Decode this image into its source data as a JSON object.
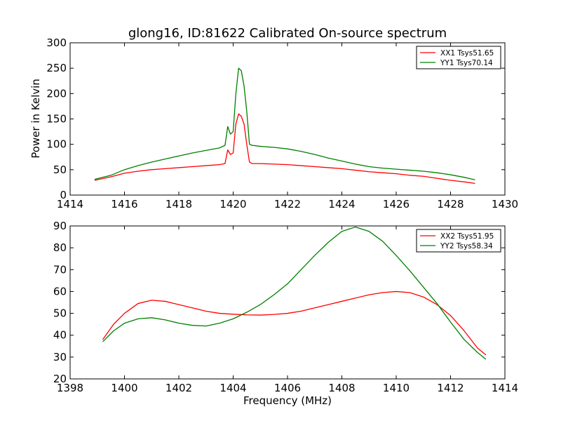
{
  "figure": {
    "title": "glong16, ID:81622 Calibrated On-source spectrum",
    "xlabel": "Frequency (MHz)"
  },
  "chart_data": [
    {
      "type": "line",
      "title": "glong16, ID:81622 Calibrated On-source spectrum",
      "xlabel": "",
      "ylabel": "Power in Kelvin",
      "xlim": [
        1414,
        1430
      ],
      "ylim": [
        0,
        300
      ],
      "xticks": [
        1414,
        1416,
        1418,
        1420,
        1422,
        1424,
        1426,
        1428,
        1430
      ],
      "yticks": [
        0,
        50,
        100,
        150,
        200,
        250,
        300
      ],
      "grid": false,
      "legend_position": "top-right",
      "series": [
        {
          "name": "XX1 Tsys51.65",
          "color": "#ff0000",
          "x": [
            1414.9,
            1415.5,
            1416.0,
            1416.5,
            1417.0,
            1417.5,
            1418.0,
            1418.5,
            1419.0,
            1419.5,
            1419.7,
            1419.8,
            1419.9,
            1420.0,
            1420.1,
            1420.2,
            1420.3,
            1420.4,
            1420.5,
            1420.6,
            1420.7,
            1421.0,
            1421.5,
            1422.0,
            1422.5,
            1423.0,
            1423.5,
            1424.0,
            1424.5,
            1425.0,
            1425.5,
            1426.0,
            1426.5,
            1427.0,
            1427.5,
            1428.0,
            1428.5,
            1428.9
          ],
          "y": [
            29,
            36,
            43,
            47,
            50,
            52,
            54,
            56,
            58,
            60,
            62,
            89,
            80,
            83,
            140,
            160,
            155,
            140,
            100,
            65,
            62,
            62,
            61,
            60,
            58,
            56,
            54,
            52,
            49,
            46,
            44,
            42,
            39,
            37,
            33,
            29,
            26,
            23
          ]
        },
        {
          "name": "YY1 Tsys70.14",
          "color": "#008000",
          "x": [
            1414.9,
            1415.5,
            1416.0,
            1416.5,
            1417.0,
            1417.5,
            1418.0,
            1418.5,
            1419.0,
            1419.5,
            1419.7,
            1419.8,
            1419.9,
            1420.0,
            1420.1,
            1420.2,
            1420.3,
            1420.4,
            1420.5,
            1420.6,
            1420.7,
            1421.0,
            1421.5,
            1422.0,
            1422.5,
            1423.0,
            1423.5,
            1424.0,
            1424.5,
            1425.0,
            1425.5,
            1426.0,
            1426.5,
            1427.0,
            1427.5,
            1428.0,
            1428.5,
            1428.9
          ],
          "y": [
            31,
            39,
            50,
            58,
            65,
            71,
            77,
            83,
            88,
            93,
            98,
            135,
            120,
            125,
            200,
            250,
            245,
            215,
            165,
            100,
            98,
            96,
            94,
            91,
            86,
            80,
            73,
            67,
            61,
            56,
            53,
            51,
            49,
            47,
            44,
            40,
            35,
            30
          ]
        }
      ]
    },
    {
      "type": "line",
      "title": "",
      "xlabel": "Frequency (MHz)",
      "ylabel": "",
      "xlim": [
        1398,
        1414
      ],
      "ylim": [
        20,
        90
      ],
      "xticks": [
        1398,
        1400,
        1402,
        1404,
        1406,
        1408,
        1410,
        1412,
        1414
      ],
      "yticks": [
        20,
        30,
        40,
        50,
        60,
        70,
        80,
        90
      ],
      "grid": false,
      "legend_position": "top-right",
      "series": [
        {
          "name": "XX2 Tsys51.95",
          "color": "#ff0000",
          "x": [
            1399.2,
            1399.6,
            1400.0,
            1400.5,
            1401.0,
            1401.5,
            1402.0,
            1402.5,
            1403.0,
            1403.5,
            1404.0,
            1404.5,
            1405.0,
            1405.5,
            1406.0,
            1406.5,
            1407.0,
            1407.5,
            1408.0,
            1408.5,
            1409.0,
            1409.5,
            1410.0,
            1410.5,
            1411.0,
            1411.5,
            1412.0,
            1412.5,
            1413.0,
            1413.3
          ],
          "y": [
            38,
            45,
            50,
            54.5,
            56,
            55.5,
            54,
            52.5,
            51,
            50,
            49.6,
            49.3,
            49.2,
            49.5,
            50,
            51,
            52.5,
            54,
            55.5,
            57,
            58.5,
            59.5,
            60,
            59.5,
            57.5,
            54,
            49,
            42,
            34,
            31
          ]
        },
        {
          "name": "YY2 Tsys58.34",
          "color": "#008000",
          "x": [
            1399.2,
            1399.6,
            1400.0,
            1400.5,
            1401.0,
            1401.5,
            1402.0,
            1402.5,
            1403.0,
            1403.5,
            1404.0,
            1404.5,
            1405.0,
            1405.5,
            1406.0,
            1406.5,
            1407.0,
            1407.5,
            1408.0,
            1408.5,
            1409.0,
            1409.5,
            1410.0,
            1410.5,
            1411.0,
            1411.5,
            1412.0,
            1412.5,
            1413.0,
            1413.3
          ],
          "y": [
            37,
            42,
            45.5,
            47.5,
            48,
            47,
            45.5,
            44.5,
            44.2,
            45.5,
            47.5,
            50.5,
            54,
            58.5,
            63.5,
            70,
            76.5,
            82.5,
            87.5,
            89.5,
            87.5,
            83,
            76.5,
            69.5,
            62,
            54.5,
            46,
            38,
            32,
            29
          ]
        }
      ]
    }
  ]
}
